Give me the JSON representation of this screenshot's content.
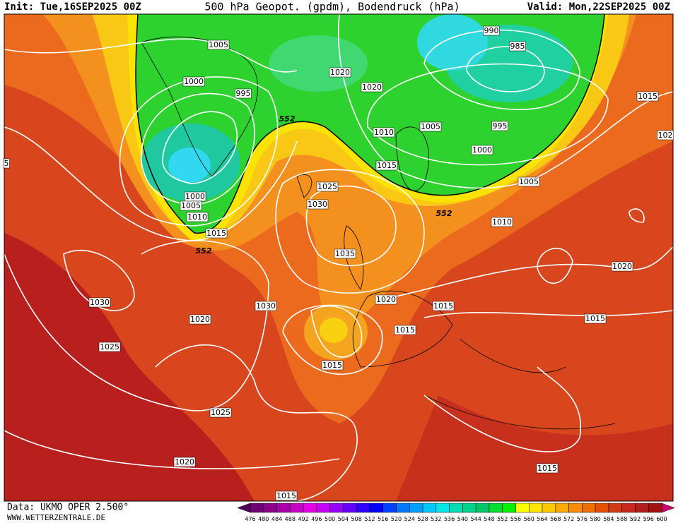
{
  "header": {
    "init": "Init: Tue,16SEP2025 00Z",
    "title": "500 hPa Geopot. (gpdm), Bodendruck (hPa)",
    "valid": "Valid: Mon,22SEP2025 00Z"
  },
  "contour_labels": [
    "1005",
    "1000",
    "995",
    "552",
    "1020",
    "1020",
    "990",
    "985",
    "1010",
    "1005",
    "995",
    "1000",
    "1015",
    "1015",
    "102",
    "5",
    "1000",
    "1005",
    "1010",
    "1025",
    "1030",
    "552",
    "1010",
    "1015",
    "552",
    "1035",
    "1005",
    "1020",
    "1030",
    "1030",
    "1020",
    "1015",
    "1015",
    "1020",
    "1015",
    "1025",
    "1015",
    "1025",
    "1020",
    "1015",
    "1015"
  ],
  "footer": {
    "source": "Data: UKMO OPER 2.500°",
    "site": "WWW.WETTERZENTRALE.DE"
  },
  "colorbar": {
    "ticks": [
      476,
      480,
      484,
      488,
      492,
      496,
      500,
      504,
      508,
      512,
      516,
      520,
      524,
      528,
      532,
      536,
      540,
      544,
      548,
      552,
      556,
      560,
      564,
      568,
      572,
      576,
      580,
      584,
      588,
      592,
      596,
      600
    ]
  }
}
